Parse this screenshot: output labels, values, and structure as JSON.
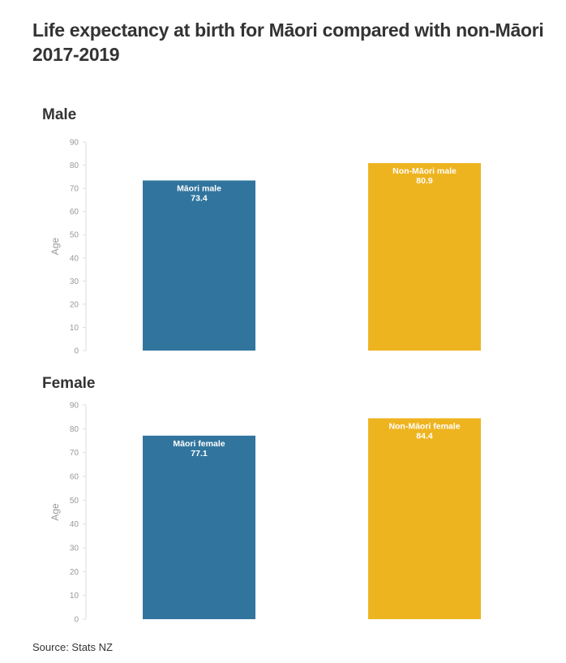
{
  "title": "Life expectancy at birth for Māori compared with non-Māori 2017-2019",
  "source": "Source: Stats NZ",
  "colors": {
    "maori": "#31759e",
    "non_maori": "#eeb420",
    "tick": "#999999",
    "axis": "#dddddd"
  },
  "chart_data": [
    {
      "type": "bar",
      "title": "Male",
      "ylabel": "Age",
      "ylim": [
        0,
        90
      ],
      "yticks": [
        0,
        10,
        20,
        30,
        40,
        50,
        60,
        70,
        80,
        90
      ],
      "categories": [
        "Māori male",
        "Non-Māori male"
      ],
      "values": [
        73.4,
        80.9
      ],
      "value_labels": [
        "73.4",
        "80.9"
      ],
      "bar_colors": [
        "#31759e",
        "#eeb420"
      ]
    },
    {
      "type": "bar",
      "title": "Female",
      "ylabel": "Age",
      "ylim": [
        0,
        90
      ],
      "yticks": [
        0,
        10,
        20,
        30,
        40,
        50,
        60,
        70,
        80,
        90
      ],
      "categories": [
        "Māori female",
        "Non-Māori female"
      ],
      "values": [
        77.1,
        84.4
      ],
      "value_labels": [
        "77.1",
        "84.4"
      ],
      "bar_colors": [
        "#31759e",
        "#eeb420"
      ]
    }
  ]
}
